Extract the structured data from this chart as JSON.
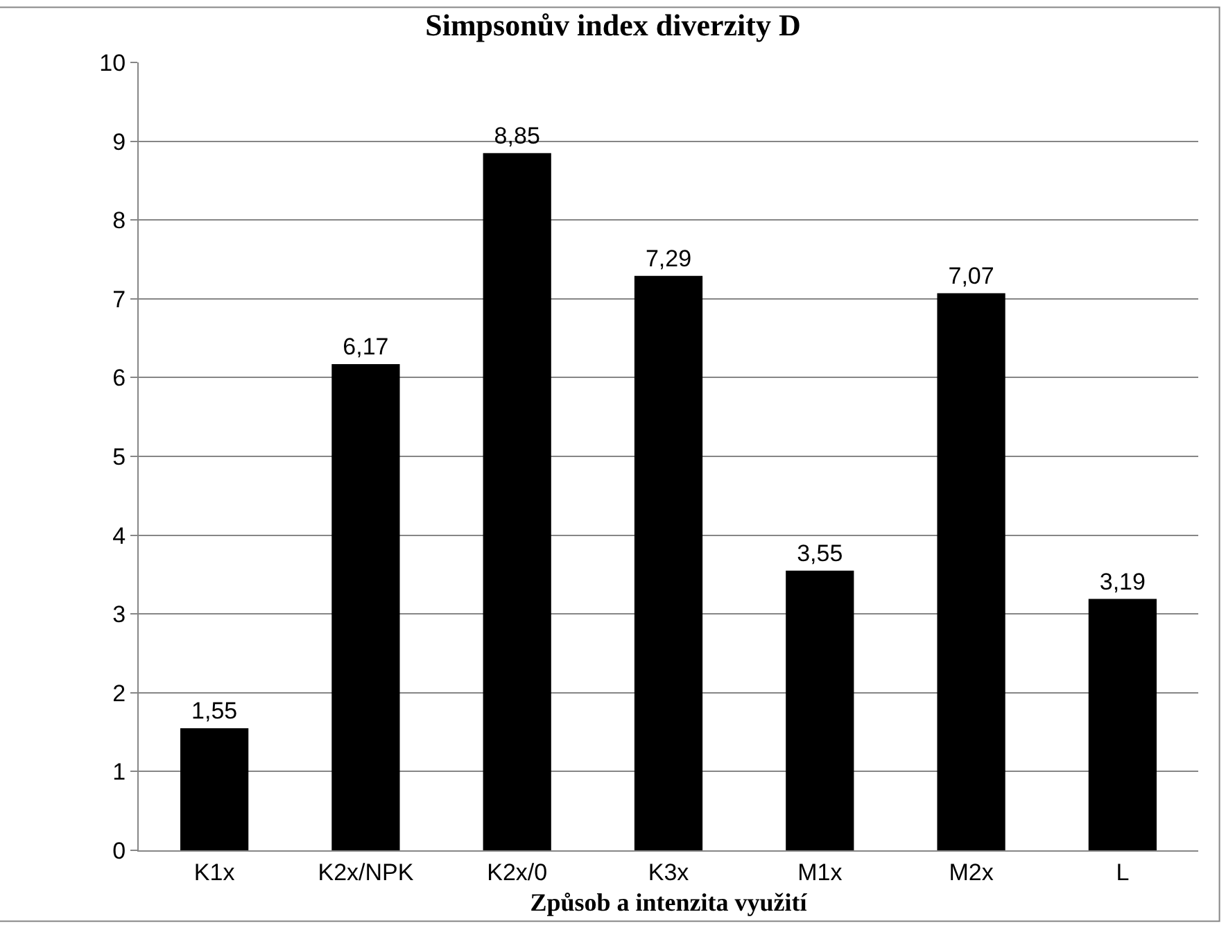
{
  "chart_data": {
    "type": "bar",
    "title": "Simpsonův index diverzity D",
    "xlabel": "Způsob a intenzita využití",
    "categories": [
      "K1x",
      "K2x/NPK",
      "K2x/0",
      "K3x",
      "M1x",
      "M2x",
      "L"
    ],
    "values": [
      1.55,
      6.17,
      8.85,
      7.29,
      3.55,
      7.07,
      3.19
    ],
    "value_labels": [
      "1,55",
      "6,17",
      "8,85",
      "7,29",
      "3,55",
      "7,07",
      "3,19"
    ],
    "color": "#000000",
    "ylim": [
      0,
      10
    ],
    "yticks": [
      0,
      1,
      2,
      3,
      4,
      5,
      6,
      7,
      8,
      9,
      10
    ],
    "grid": "y"
  }
}
